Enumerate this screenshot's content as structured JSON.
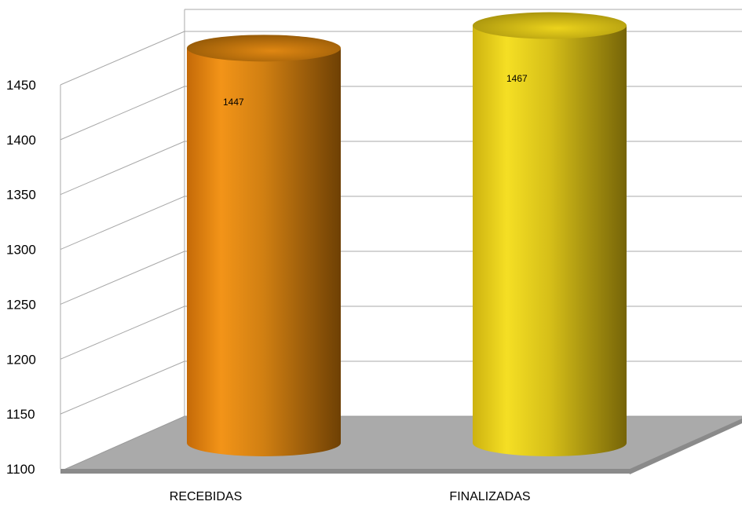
{
  "chart_data": {
    "type": "bar",
    "style": "3d-cylinder",
    "title": "",
    "xlabel": "",
    "ylabel": "",
    "categories": [
      "RECEBIDAS",
      "FINALIZADAS"
    ],
    "values": [
      1447,
      1467
    ],
    "data_labels": [
      "1447",
      "1467"
    ],
    "colors": [
      "#f7931e",
      "#f2d51a"
    ],
    "ylim": [
      1100,
      1450
    ],
    "yticks": [
      1100,
      1150,
      1200,
      1250,
      1300,
      1350,
      1400,
      1450
    ],
    "grid": true,
    "legend": "none"
  }
}
